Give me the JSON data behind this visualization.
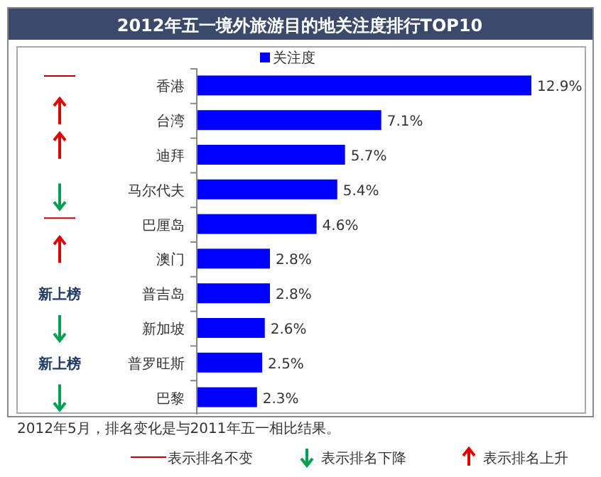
{
  "chart_data": {
    "type": "bar",
    "orientation": "horizontal",
    "title": "2012年五一境外旅游目的地关注度排行TOP10",
    "categories": [
      "香港",
      "台湾",
      "迪拜",
      "马尔代夫",
      "巴厘岛",
      "澳门",
      "普吉岛",
      "新加坡",
      "普罗旺斯",
      "巴黎"
    ],
    "series": [
      {
        "name": "关注度",
        "color": "#0000ff",
        "values": [
          12.9,
          7.1,
          5.7,
          5.4,
          4.6,
          2.8,
          2.8,
          2.6,
          2.5,
          2.3
        ],
        "value_labels": [
          "12.9%",
          "7.1%",
          "5.7%",
          "5.4%",
          "4.6%",
          "2.8%",
          "2.8%",
          "2.6%",
          "2.5%",
          "2.3%"
        ]
      }
    ],
    "legend": "top",
    "annotations": [
      "新上榜",
      "新上榜",
      "2012年5月，排名变化是与2011年五一相比结果。",
      "表示排名不变",
      "表示排名下降",
      "表示排名上升"
    ]
  }
}
